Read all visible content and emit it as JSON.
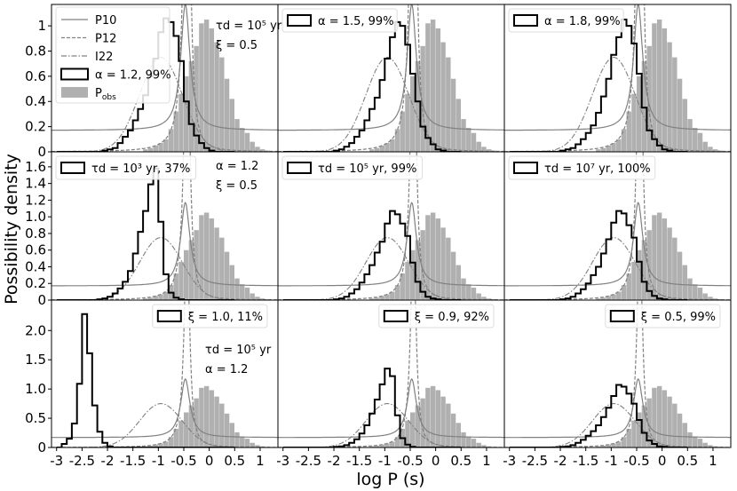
{
  "figure": {
    "xlabel": "log P (s)",
    "ylabel": "Possibility density"
  },
  "style": {
    "hist_fill": "#b0b0b0",
    "model_line": "#000000",
    "curve_color": "#808080",
    "light_curve_color": "#c8c8c8"
  },
  "legend": {
    "p10": "P10",
    "p12": "P12",
    "i22": "I22",
    "model": "α = 1.2, 99%",
    "pobs": "P_obs"
  },
  "chart_data": [
    {
      "type": "step",
      "panel": "row1-col1",
      "legend_label": "α = 1.2, 99%",
      "annotations": [
        "τd = 10⁵ yr",
        "ξ = 0.5"
      ],
      "xlim": [
        -3.1,
        1.35
      ],
      "ylim": [
        0,
        1.17
      ],
      "yticks": [
        "0",
        "0.2",
        "0.4",
        "0.6",
        "0.8",
        "1"
      ],
      "xticks": [],
      "model_hist": [
        0.0,
        0.0,
        0.0,
        0.0,
        0.0,
        0.0,
        0.0,
        0.0,
        0.0,
        0.01,
        0.02,
        0.03,
        0.07,
        0.12,
        0.17,
        0.25,
        0.34,
        0.45,
        0.6,
        0.74,
        0.95,
        1.06,
        1.03,
        0.92,
        0.72,
        0.4,
        0.22,
        0.13,
        0.07,
        0.03,
        0.01,
        0.0,
        0.0,
        0.0,
        0.0
      ]
    },
    {
      "type": "step",
      "panel": "row1-col2",
      "legend_label": "α = 1.5, 99%",
      "annotations": [],
      "xlim": [
        -3.1,
        1.35
      ],
      "ylim": [
        0,
        1.17
      ],
      "yticks": [],
      "xticks": [],
      "model_hist": [
        0.0,
        0.0,
        0.0,
        0.0,
        0.0,
        0.0,
        0.0,
        0.0,
        0.0,
        0.0,
        0.01,
        0.02,
        0.04,
        0.07,
        0.12,
        0.17,
        0.25,
        0.34,
        0.43,
        0.57,
        0.74,
        0.91,
        1.03,
        1.0,
        0.85,
        0.62,
        0.4,
        0.2,
        0.11,
        0.06,
        0.02,
        0.01,
        0.0,
        0.0,
        0.0
      ]
    },
    {
      "type": "step",
      "panel": "row1-col3",
      "legend_label": "α = 1.8, 99%",
      "annotations": [],
      "xlim": [
        -3.1,
        1.35
      ],
      "ylim": [
        0,
        1.17
      ],
      "yticks": [],
      "xticks": [],
      "model_hist": [
        0.0,
        0.0,
        0.0,
        0.0,
        0.0,
        0.0,
        0.0,
        0.0,
        0.0,
        0.0,
        0.01,
        0.02,
        0.03,
        0.06,
        0.1,
        0.15,
        0.21,
        0.31,
        0.44,
        0.58,
        0.77,
        0.91,
        1.05,
        1.0,
        0.86,
        0.62,
        0.35,
        0.17,
        0.1,
        0.05,
        0.02,
        0.01,
        0.0,
        0.0,
        0.0
      ]
    },
    {
      "type": "step",
      "panel": "row2-col1",
      "legend_label": "τd = 10³ yr, 37%",
      "annotations": [
        "α = 1.2",
        "ξ = 0.5"
      ],
      "xlim": [
        -3.1,
        1.35
      ],
      "ylim": [
        0,
        1.78
      ],
      "yticks": [
        "0",
        "0.2",
        "0.4",
        "0.6",
        "0.8",
        "1.0",
        "1.2",
        "1.4",
        "1.6"
      ],
      "xticks": [],
      "model_hist": [
        0.0,
        0.0,
        0.0,
        0.0,
        0.0,
        0.0,
        0.0,
        0.0,
        0.01,
        0.02,
        0.04,
        0.08,
        0.14,
        0.22,
        0.35,
        0.56,
        0.82,
        1.07,
        1.39,
        1.58,
        0.94,
        0.31,
        0.09,
        0.03,
        0.01,
        0.0,
        0.0,
        0.0,
        0.0,
        0.0,
        0.0,
        0.0,
        0.0,
        0.0,
        0.0
      ]
    },
    {
      "type": "step",
      "panel": "row2-col2",
      "legend_label": "τd = 10⁵ yr, 99%",
      "annotations": [],
      "xlim": [
        -3.1,
        1.35
      ],
      "ylim": [
        0,
        1.78
      ],
      "yticks": [],
      "xticks": [],
      "model_hist": [
        0.0,
        0.0,
        0.0,
        0.0,
        0.0,
        0.0,
        0.0,
        0.0,
        0.0,
        0.0,
        0.01,
        0.02,
        0.04,
        0.08,
        0.13,
        0.21,
        0.31,
        0.42,
        0.57,
        0.7,
        0.92,
        1.07,
        1.03,
        0.92,
        0.77,
        0.45,
        0.22,
        0.1,
        0.04,
        0.02,
        0.01,
        0.0,
        0.0,
        0.0,
        0.0
      ]
    },
    {
      "type": "step",
      "panel": "row2-col3",
      "legend_label": "τd = 10⁷ yr, 100%",
      "annotations": [],
      "xlim": [
        -3.1,
        1.35
      ],
      "ylim": [
        0,
        1.78
      ],
      "yticks": [],
      "xticks": [],
      "model_hist": [
        0.0,
        0.0,
        0.0,
        0.0,
        0.0,
        0.0,
        0.0,
        0.0,
        0.0,
        0.0,
        0.01,
        0.02,
        0.04,
        0.08,
        0.13,
        0.2,
        0.3,
        0.4,
        0.56,
        0.73,
        0.93,
        1.07,
        1.04,
        0.9,
        0.75,
        0.46,
        0.22,
        0.11,
        0.05,
        0.02,
        0.01,
        0.0,
        0.0,
        0.0,
        0.0
      ]
    },
    {
      "type": "step",
      "panel": "row3-col1",
      "legend_label": "ξ = 1.0, 11%",
      "annotations": [
        "τd = 10⁵ yr",
        "α = 1.2"
      ],
      "xlim": [
        -3.1,
        1.35
      ],
      "ylim": [
        0,
        2.52
      ],
      "yticks": [
        "0",
        "0.5",
        "1.0",
        "1.5",
        "2.0"
      ],
      "xticks": [
        "-3",
        "-2.5",
        "-2",
        "-1.5",
        "-1",
        "-0.5",
        "0",
        "0.5",
        "1"
      ],
      "model_hist": [
        0.0,
        0.06,
        0.15,
        0.41,
        1.09,
        2.28,
        1.61,
        0.72,
        0.27,
        0.08,
        0.02,
        0.0,
        0.0,
        0.0,
        0.0,
        0.0,
        0.0,
        0.0,
        0.0,
        0.0,
        0.0,
        0.0,
        0.0,
        0.0,
        0.0,
        0.0,
        0.0,
        0.0,
        0.0,
        0.0,
        0.0,
        0.0,
        0.0,
        0.0,
        0.0
      ]
    },
    {
      "type": "step",
      "panel": "row3-col2",
      "legend_label": "ξ = 0.9, 92%",
      "annotations": [],
      "xlim": [
        -3.1,
        1.35
      ],
      "ylim": [
        0,
        2.52
      ],
      "yticks": [],
      "xticks": [
        "-3",
        "-2.5",
        "-2",
        "-1.5",
        "-1",
        "-0.5",
        "0",
        "0.5",
        "1"
      ],
      "model_hist": [
        0.0,
        0.0,
        0.0,
        0.0,
        0.0,
        0.0,
        0.0,
        0.0,
        0.0,
        0.0,
        0.01,
        0.02,
        0.04,
        0.08,
        0.14,
        0.24,
        0.38,
        0.58,
        0.82,
        1.08,
        1.35,
        1.22,
        0.55,
        0.16,
        0.05,
        0.01,
        0.0,
        0.0,
        0.0,
        0.0,
        0.0,
        0.0,
        0.0,
        0.0,
        0.0
      ]
    },
    {
      "type": "step",
      "panel": "row3-col3",
      "legend_label": "ξ = 0.5, 99%",
      "annotations": [],
      "xlim": [
        -3.1,
        1.35
      ],
      "ylim": [
        0,
        2.52
      ],
      "yticks": [],
      "xticks": [
        "-3",
        "-2.5",
        "-2",
        "-1.5",
        "-1",
        "-0.5",
        "0",
        "0.5",
        "1"
      ],
      "model_hist": [
        0.0,
        0.0,
        0.0,
        0.0,
        0.0,
        0.0,
        0.0,
        0.0,
        0.0,
        0.0,
        0.01,
        0.02,
        0.04,
        0.08,
        0.13,
        0.2,
        0.28,
        0.38,
        0.52,
        0.68,
        0.88,
        1.07,
        1.04,
        0.92,
        0.75,
        0.47,
        0.25,
        0.12,
        0.06,
        0.02,
        0.01,
        0.0,
        0.0,
        0.0,
        0.0
      ]
    }
  ],
  "shared_series": {
    "bins": {
      "start": -3.0,
      "width": 0.1,
      "count": 35
    },
    "pobs_hist": [
      0.0,
      0.0,
      0.0,
      0.0,
      0.0,
      0.0,
      0.0,
      0.0,
      0.0,
      0.0,
      0.0,
      0.0,
      0.0,
      0.0,
      0.0,
      0.02,
      0.03,
      0.05,
      0.07,
      0.1,
      0.18,
      0.32,
      0.46,
      0.6,
      0.72,
      0.84,
      1.02,
      1.05,
      0.98,
      0.87,
      0.75,
      0.58,
      0.42,
      0.26,
      0.19,
      0.15,
      0.08,
      0.04,
      0.02,
      0.01,
      0.0,
      0.0
    ],
    "pobs_bins": {
      "start": -1.3,
      "width": 0.1
    },
    "pobs_hist_clean": [
      0.02,
      0.03,
      0.05,
      0.07,
      0.1,
      0.18,
      0.32,
      0.46,
      0.6,
      0.72,
      0.84,
      1.02,
      1.05,
      0.98,
      0.87,
      0.75,
      0.58,
      0.42,
      0.26,
      0.19,
      0.15,
      0.08,
      0.04,
      0.02,
      0.01
    ],
    "p10_curve": {
      "type": "lorentz-like",
      "x0": -0.5,
      "base": 0.18
    },
    "p12_curve": {
      "type": "asymmetric",
      "x0": -0.45
    },
    "i22_curve": {
      "type": "gaussian",
      "mu": -0.95,
      "sigma": 0.45,
      "peak": 0.75
    }
  }
}
